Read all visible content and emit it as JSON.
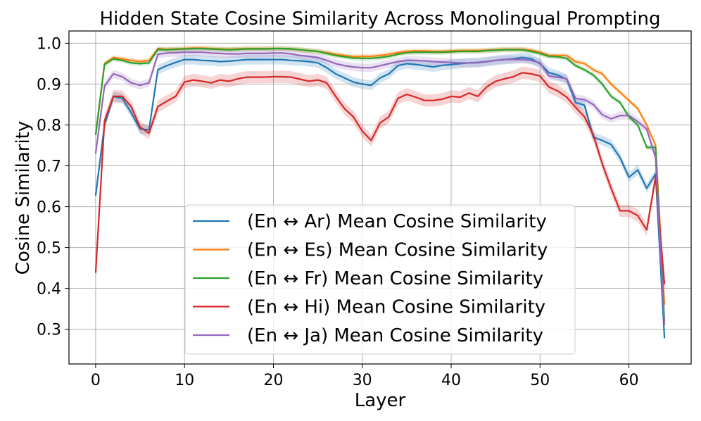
{
  "chart_data": {
    "type": "line",
    "title": "Hidden State Cosine Similarity Across Monolingual Prompting",
    "xlabel": "Layer",
    "ylabel": "Cosine Similarity",
    "xlim": [
      -3,
      67
    ],
    "ylim": [
      0.215,
      1.03
    ],
    "xticks": [
      0,
      10,
      20,
      30,
      40,
      50,
      60
    ],
    "xtick_labels": [
      "0",
      "10",
      "20",
      "30",
      "40",
      "50",
      "60"
    ],
    "yticks": [
      0.3,
      0.4,
      0.5,
      0.6,
      0.7,
      0.8,
      0.9,
      1.0
    ],
    "ytick_labels": [
      "0.3",
      "0.4",
      "0.5",
      "0.6",
      "0.7",
      "0.8",
      "0.9",
      "1.0"
    ],
    "grid": true,
    "legend_position": "center-bottom",
    "series": [
      {
        "name": "(En ↔ Ar) Mean Cosine Similarity",
        "color": "#1f77b4",
        "band": 0.012,
        "values": [
          0.627,
          0.8,
          0.87,
          0.865,
          0.83,
          0.79,
          0.788,
          0.935,
          0.945,
          0.953,
          0.96,
          0.96,
          0.958,
          0.957,
          0.955,
          0.956,
          0.958,
          0.96,
          0.96,
          0.96,
          0.96,
          0.96,
          0.958,
          0.957,
          0.955,
          0.952,
          0.94,
          0.925,
          0.915,
          0.905,
          0.9,
          0.897,
          0.915,
          0.925,
          0.945,
          0.95,
          0.948,
          0.945,
          0.942,
          0.946,
          0.948,
          0.95,
          0.952,
          0.953,
          0.955,
          0.958,
          0.96,
          0.962,
          0.965,
          0.962,
          0.95,
          0.928,
          0.922,
          0.912,
          0.855,
          0.848,
          0.77,
          0.762,
          0.752,
          0.72,
          0.672,
          0.69,
          0.645,
          0.68,
          0.278
        ]
      },
      {
        "name": "(En ↔ Es) Mean Cosine Similarity",
        "color": "#ff7f0e",
        "band": 0.006,
        "values": [
          0.775,
          0.95,
          0.965,
          0.962,
          0.958,
          0.955,
          0.958,
          0.987,
          0.985,
          0.986,
          0.987,
          0.988,
          0.988,
          0.987,
          0.986,
          0.985,
          0.986,
          0.987,
          0.987,
          0.987,
          0.987,
          0.987,
          0.986,
          0.984,
          0.982,
          0.98,
          0.977,
          0.973,
          0.97,
          0.967,
          0.968,
          0.968,
          0.97,
          0.973,
          0.977,
          0.98,
          0.981,
          0.981,
          0.98,
          0.98,
          0.981,
          0.982,
          0.982,
          0.982,
          0.983,
          0.984,
          0.985,
          0.985,
          0.985,
          0.983,
          0.978,
          0.97,
          0.97,
          0.97,
          0.955,
          0.95,
          0.935,
          0.925,
          0.9,
          0.88,
          0.86,
          0.84,
          0.8,
          0.75,
          0.36
        ]
      },
      {
        "name": "(En ↔ Fr) Mean Cosine Similarity",
        "color": "#2ca02c",
        "band": 0.006,
        "values": [
          0.775,
          0.948,
          0.962,
          0.958,
          0.952,
          0.95,
          0.952,
          0.985,
          0.984,
          0.985,
          0.986,
          0.987,
          0.987,
          0.986,
          0.985,
          0.984,
          0.985,
          0.986,
          0.986,
          0.986,
          0.987,
          0.987,
          0.986,
          0.984,
          0.982,
          0.98,
          0.975,
          0.97,
          0.967,
          0.964,
          0.963,
          0.963,
          0.965,
          0.968,
          0.973,
          0.977,
          0.978,
          0.978,
          0.978,
          0.978,
          0.979,
          0.98,
          0.98,
          0.98,
          0.982,
          0.983,
          0.984,
          0.984,
          0.984,
          0.98,
          0.975,
          0.968,
          0.967,
          0.963,
          0.945,
          0.935,
          0.922,
          0.9,
          0.87,
          0.855,
          0.82,
          0.8,
          0.745,
          0.745,
          0.32
        ]
      },
      {
        "name": "(En ↔ Hi) Mean Cosine Similarity",
        "color": "#d62728",
        "band": 0.015,
        "values": [
          0.438,
          0.81,
          0.87,
          0.87,
          0.845,
          0.795,
          0.78,
          0.845,
          0.858,
          0.87,
          0.905,
          0.91,
          0.907,
          0.903,
          0.91,
          0.907,
          0.913,
          0.917,
          0.917,
          0.917,
          0.918,
          0.918,
          0.917,
          0.912,
          0.907,
          0.91,
          0.903,
          0.87,
          0.84,
          0.82,
          0.785,
          0.762,
          0.805,
          0.82,
          0.865,
          0.875,
          0.868,
          0.86,
          0.86,
          0.863,
          0.87,
          0.868,
          0.878,
          0.87,
          0.893,
          0.907,
          0.913,
          0.918,
          0.928,
          0.925,
          0.92,
          0.893,
          0.883,
          0.868,
          0.843,
          0.82,
          0.775,
          0.705,
          0.645,
          0.59,
          0.59,
          0.578,
          0.543,
          0.673,
          0.41
        ]
      },
      {
        "name": "(En ↔ Ja) Mean Cosine Similarity",
        "color": "#9467bd",
        "band": 0.01,
        "values": [
          0.73,
          0.895,
          0.925,
          0.918,
          0.903,
          0.897,
          0.903,
          0.973,
          0.976,
          0.977,
          0.978,
          0.978,
          0.978,
          0.976,
          0.975,
          0.974,
          0.974,
          0.975,
          0.975,
          0.975,
          0.976,
          0.976,
          0.974,
          0.97,
          0.968,
          0.965,
          0.958,
          0.95,
          0.945,
          0.942,
          0.94,
          0.94,
          0.945,
          0.95,
          0.955,
          0.958,
          0.958,
          0.957,
          0.955,
          0.954,
          0.953,
          0.952,
          0.952,
          0.952,
          0.955,
          0.958,
          0.96,
          0.96,
          0.96,
          0.958,
          0.952,
          0.92,
          0.917,
          0.913,
          0.865,
          0.862,
          0.85,
          0.825,
          0.815,
          0.823,
          0.823,
          0.808,
          0.79,
          0.72,
          0.31
        ]
      }
    ]
  }
}
